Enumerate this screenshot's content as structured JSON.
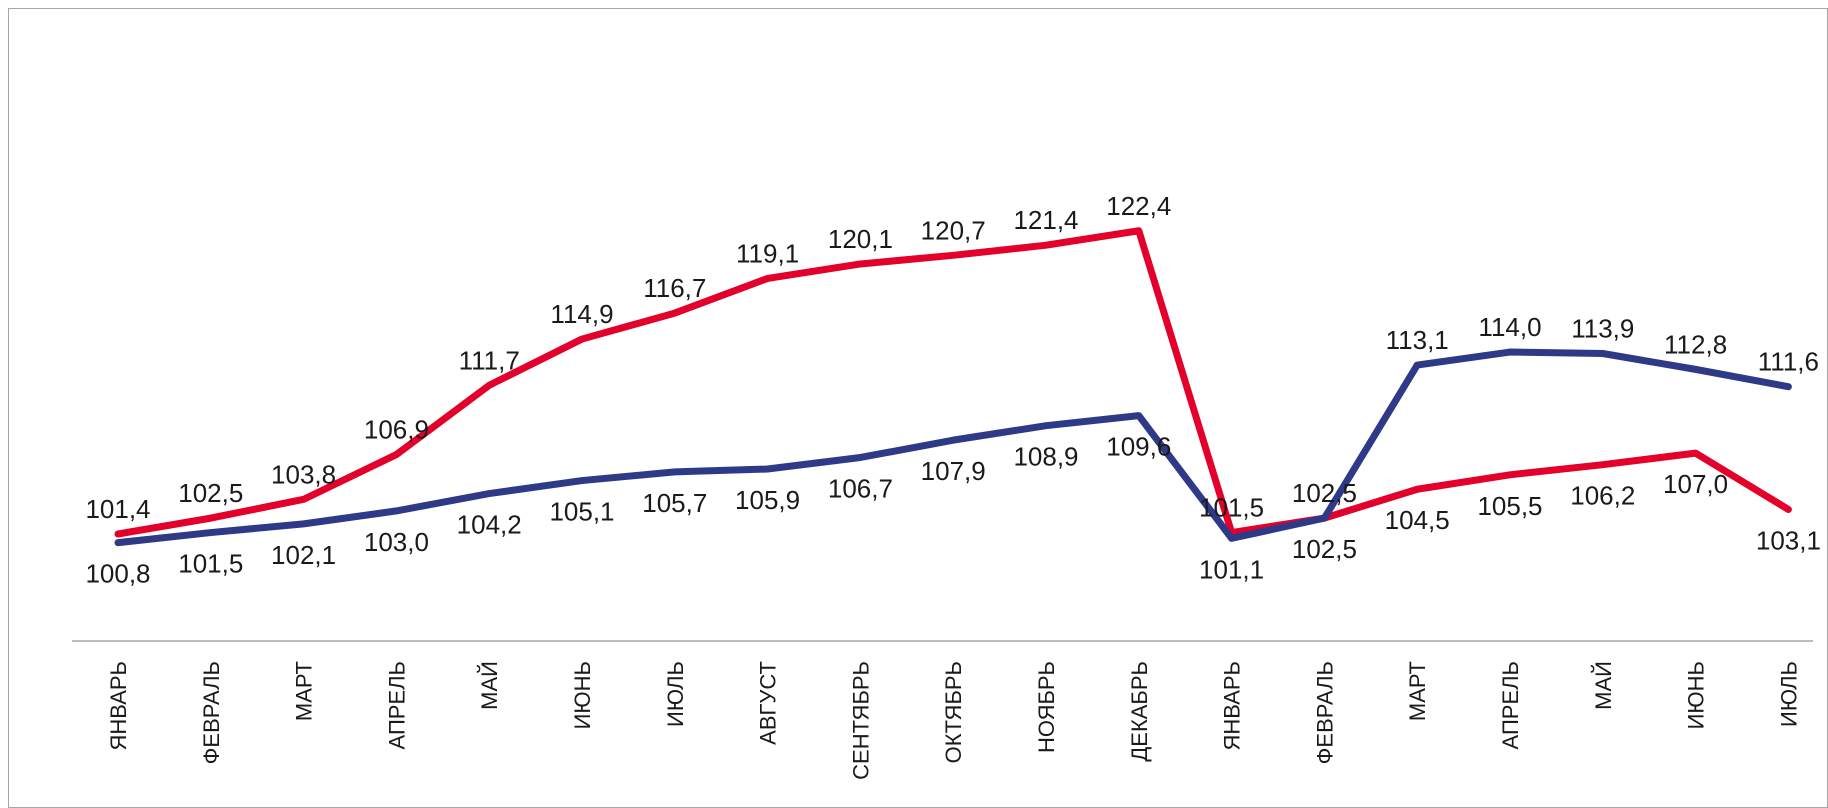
{
  "chart_data": {
    "type": "line",
    "title": "",
    "xlabel": "",
    "ylabel": "",
    "categories": [
      "ЯНВАРЬ",
      "ФЕВРАЛЬ",
      "МАРТ",
      "АПРЕЛЬ",
      "МАЙ",
      "ИЮНЬ",
      "ИЮЛЬ",
      "АВГУСТ",
      "СЕНТЯБРЬ",
      "ОКТЯБРЬ",
      "НОЯБРЬ",
      "ДЕКАБРЬ",
      "ЯНВАРЬ",
      "ФЕВРАЛЬ",
      "МАРТ",
      "АПРЕЛЬ",
      "МАЙ",
      "ИЮНЬ",
      "ИЮЛЬ"
    ],
    "series": [
      {
        "color": "#e3002b",
        "values": [
          101.4,
          102.5,
          103.8,
          106.9,
          111.7,
          114.9,
          116.7,
          119.1,
          120.1,
          120.7,
          121.4,
          122.4,
          101.5,
          102.5,
          104.5,
          105.5,
          106.2,
          107.0,
          103.1
        ],
        "labels": [
          "101,4",
          "102,5",
          "103,8",
          "106,9",
          "111,7",
          "114,9",
          "116,7",
          "119,1",
          "120,1",
          "120,7",
          "121,4",
          "122,4",
          "101,5",
          "102,5",
          "104,5",
          "105,5",
          "106,2",
          "107,0",
          "103,1"
        ]
      },
      {
        "color": "#2e3a87",
        "values": [
          100.8,
          101.5,
          102.1,
          103.0,
          104.2,
          105.1,
          105.7,
          105.9,
          106.7,
          107.9,
          108.9,
          109.6,
          101.1,
          102.5,
          113.1,
          114.0,
          113.9,
          112.8,
          111.6
        ],
        "labels": [
          "100,8",
          "101,5",
          "102,1",
          "103,0",
          "104,2",
          "105,1",
          "105,7",
          "105,9",
          "106,7",
          "107,9",
          "108,9",
          "109,6",
          "101,1",
          "102,5",
          "113,1",
          "114,0",
          "113,9",
          "112,8",
          "111,6"
        ]
      }
    ],
    "axis_color": "#a6a6a6",
    "grid": false,
    "legend": "none"
  }
}
